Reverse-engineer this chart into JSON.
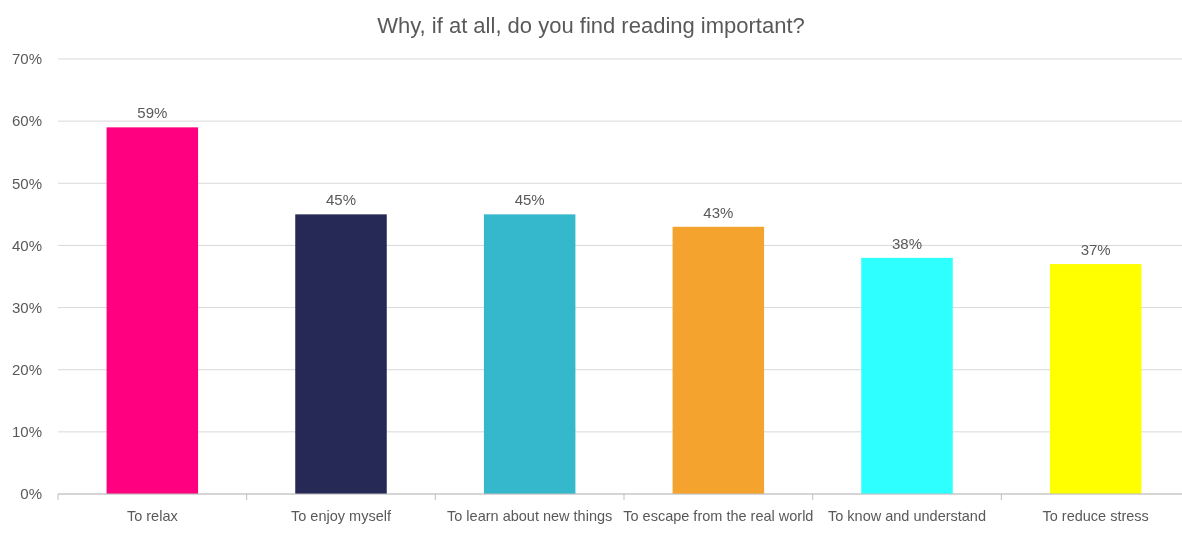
{
  "chart_data": {
    "type": "bar",
    "title": "Why, if at all, do you find reading important?",
    "categories": [
      "To relax",
      "To enjoy myself",
      "To learn about new things",
      "To escape from the real world",
      "To know and understand",
      "To reduce stress"
    ],
    "values": [
      59,
      45,
      45,
      43,
      38,
      37
    ],
    "colors": [
      "#ff0080",
      "#262856",
      "#36b8cc",
      "#f4a42e",
      "#2effff",
      "#ffff00"
    ],
    "value_labels": [
      "59%",
      "45%",
      "45%",
      "43%",
      "38%",
      "37%"
    ],
    "ylim": [
      0,
      70
    ],
    "yticks": [
      {
        "value": 0,
        "label": "0%"
      },
      {
        "value": 10,
        "label": "10%"
      },
      {
        "value": 20,
        "label": "20%"
      },
      {
        "value": 30,
        "label": "30%"
      },
      {
        "value": 40,
        "label": "40%"
      },
      {
        "value": 50,
        "label": "50%"
      },
      {
        "value": 60,
        "label": "60%"
      },
      {
        "value": 70,
        "label": "70%"
      }
    ],
    "grid": "y"
  }
}
